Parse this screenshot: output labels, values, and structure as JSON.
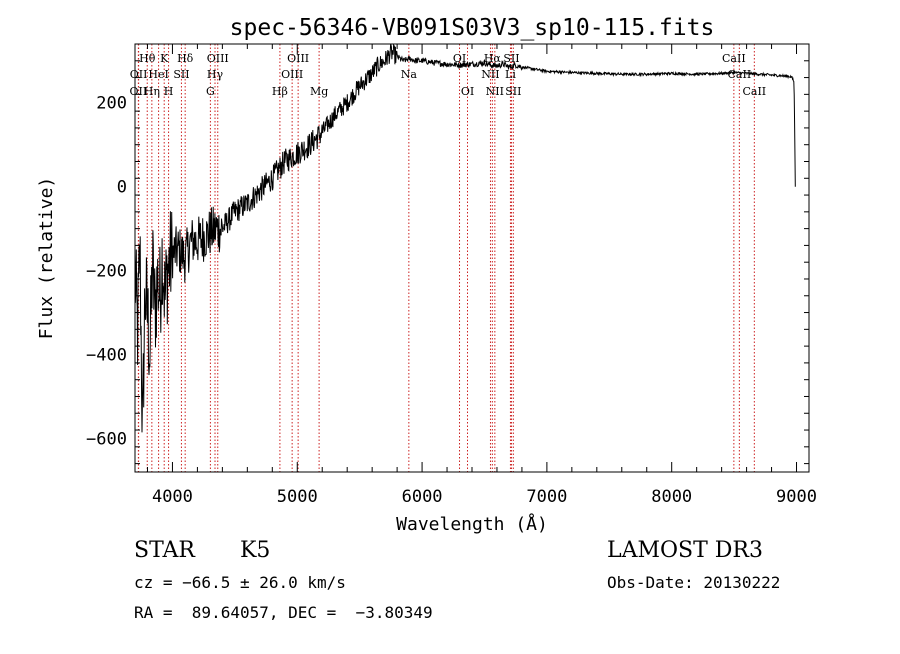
{
  "chart_data": {
    "type": "line",
    "title": "spec-56346-VB091S03V3_sp10-115.fits",
    "xlabel": "Wavelength (Å)",
    "ylabel": "Flux (relative)",
    "xlim": [
      3700,
      9100
    ],
    "ylim": [
      -680,
      340
    ],
    "x_ticks": [
      4000,
      5000,
      6000,
      7000,
      8000,
      9000
    ],
    "x_tick_labels": [
      "4000",
      "5000",
      "6000",
      "7000",
      "8000",
      "9000"
    ],
    "y_ticks": [
      -600,
      -400,
      -200,
      0,
      200
    ],
    "y_tick_labels": [
      "−600",
      "−400",
      "−200",
      "0",
      "200"
    ],
    "line_color": "#000000",
    "marker_color": "#cc2222",
    "series": [
      {
        "name": "flux",
        "x": [
          3700,
          3720,
          3740,
          3760,
          3780,
          3800,
          3820,
          3840,
          3860,
          3880,
          3900,
          3920,
          3940,
          3960,
          3980,
          4000,
          4050,
          4100,
          4150,
          4200,
          4250,
          4300,
          4350,
          4400,
          4500,
          4600,
          4700,
          4800,
          4850,
          4900,
          4950,
          5000,
          5050,
          5100,
          5200,
          5300,
          5400,
          5500,
          5600,
          5650,
          5700,
          5750,
          5800,
          5850,
          5900,
          5950,
          6000,
          6100,
          6200,
          6300,
          6400,
          6500,
          6550,
          6600,
          6650,
          6700,
          6750,
          6800,
          6900,
          7000,
          7200,
          7400,
          7600,
          7800,
          8000,
          8200,
          8400,
          8500,
          8600,
          8700,
          8800,
          8900,
          8960,
          8980,
          8985,
          8990
        ],
        "y": [
          -200,
          -350,
          -150,
          -600,
          -250,
          -300,
          -400,
          -180,
          -300,
          -220,
          -260,
          -150,
          -270,
          -200,
          -180,
          -160,
          -150,
          -170,
          -130,
          -130,
          -120,
          -110,
          -100,
          -100,
          -60,
          -40,
          -10,
          20,
          40,
          60,
          70,
          80,
          90,
          100,
          130,
          170,
          200,
          240,
          270,
          290,
          300,
          320,
          310,
          300,
          305,
          300,
          300,
          295,
          292,
          290,
          292,
          295,
          290,
          288,
          292,
          285,
          290,
          285,
          280,
          275,
          272,
          270,
          268,
          268,
          270,
          268,
          270,
          272,
          270,
          268,
          266,
          264,
          262,
          250,
          150,
          0
        ]
      }
    ],
    "lines": [
      {
        "name": "OII",
        "wl": 3727,
        "row": 3
      },
      {
        "name": "OII",
        "wl": 3729,
        "row": 2
      },
      {
        "name": "Hθ",
        "wl": 3798,
        "row": 1
      },
      {
        "name": "Hη",
        "wl": 3835,
        "row": 3
      },
      {
        "name": "HeI",
        "wl": 3889,
        "row": 2
      },
      {
        "name": "K",
        "wl": 3934,
        "row": 1
      },
      {
        "name": "H",
        "wl": 3969,
        "row": 3
      },
      {
        "name": "SII",
        "wl": 4072,
        "row": 2
      },
      {
        "name": "Hδ",
        "wl": 4102,
        "row": 1
      },
      {
        "name": "G",
        "wl": 4304,
        "row": 3
      },
      {
        "name": "Hγ",
        "wl": 4341,
        "row": 2
      },
      {
        "name": "OIII",
        "wl": 4363,
        "row": 1
      },
      {
        "name": "Hβ",
        "wl": 4861,
        "row": 3
      },
      {
        "name": "OIII",
        "wl": 4959,
        "row": 2
      },
      {
        "name": "OIII",
        "wl": 5007,
        "row": 1
      },
      {
        "name": "Mg",
        "wl": 5175,
        "row": 3
      },
      {
        "name": "Na",
        "wl": 5894,
        "row": 2
      },
      {
        "name": "OI",
        "wl": 6300,
        "row": 1
      },
      {
        "name": "OI",
        "wl": 6364,
        "row": 3
      },
      {
        "name": "NII",
        "wl": 6548,
        "row": 2
      },
      {
        "name": "Hα",
        "wl": 6563,
        "row": 1
      },
      {
        "name": "NII",
        "wl": 6583,
        "row": 3
      },
      {
        "name": "Li",
        "wl": 6708,
        "row": 2
      },
      {
        "name": "SII",
        "wl": 6716,
        "row": 1
      },
      {
        "name": "SII",
        "wl": 6731,
        "row": 3
      },
      {
        "name": "CaII",
        "wl": 8498,
        "row": 1
      },
      {
        "name": "CaII",
        "wl": 8542,
        "row": 2
      },
      {
        "name": "CaII",
        "wl": 8662,
        "row": 3
      }
    ]
  },
  "footer": {
    "obj_class": "STAR",
    "obj_subclass": "K5",
    "survey": "LAMOST DR3",
    "cz": "cz = −66.5 ± 26.0 km/s",
    "obs_date": "Obs-Date: 20130222",
    "radec": "RA =  89.64057, DEC =  −3.80349"
  }
}
